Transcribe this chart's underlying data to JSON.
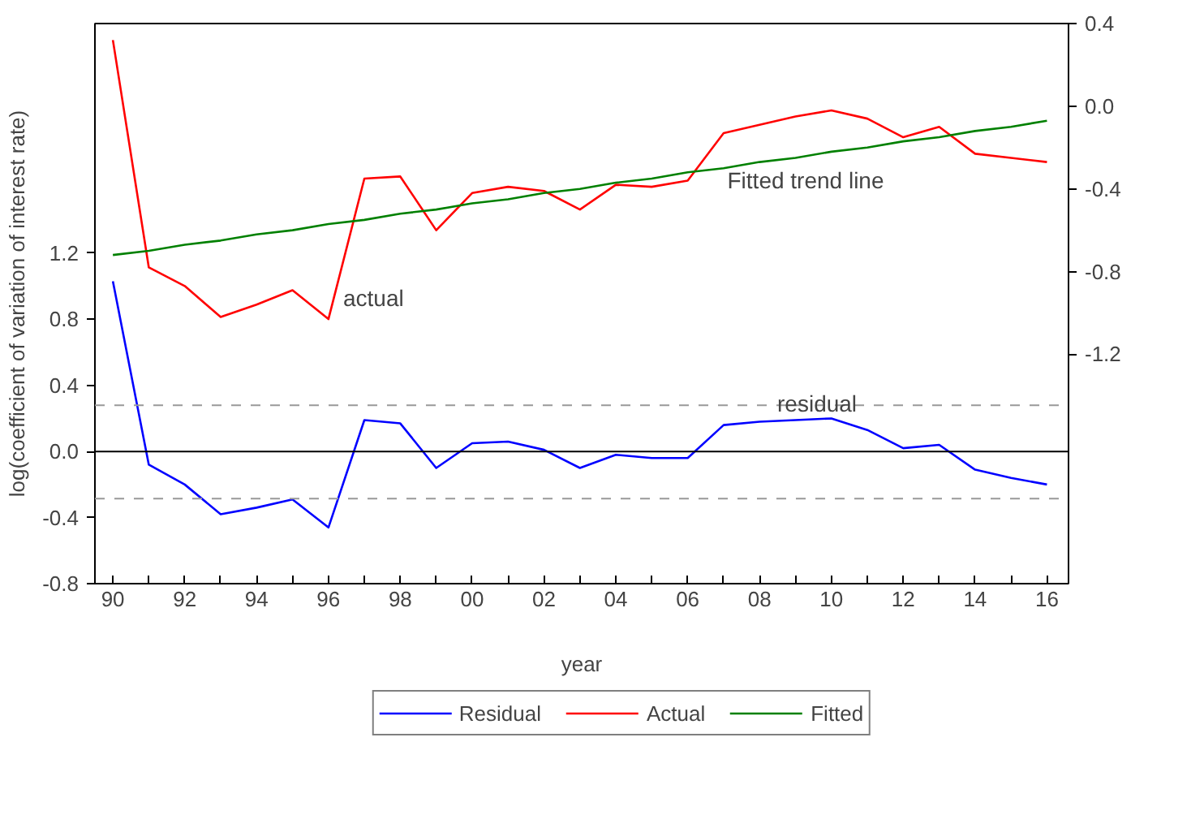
{
  "chart_data": {
    "type": "line",
    "xlabel": "year",
    "ylabel": "log(coefficient of variation of interest rate)",
    "x": [
      1990,
      1991,
      1992,
      1993,
      1994,
      1995,
      1996,
      1997,
      1998,
      1999,
      2000,
      2001,
      2002,
      2003,
      2004,
      2005,
      2006,
      2007,
      2008,
      2009,
      2010,
      2011,
      2012,
      2013,
      2014,
      2015,
      2016
    ],
    "series": [
      {
        "name": "Residual",
        "color": "#0000ff",
        "axis": "y",
        "values": [
          1.03,
          -0.08,
          -0.2,
          -0.38,
          -0.34,
          -0.29,
          -0.46,
          0.19,
          0.17,
          -0.1,
          0.05,
          0.06,
          0.01,
          -0.1,
          -0.02,
          -0.04,
          -0.04,
          0.16,
          0.18,
          0.19,
          0.2,
          0.13,
          0.02,
          0.04,
          -0.11,
          -0.16,
          -0.2
        ]
      },
      {
        "name": "Actual",
        "color": "#ff0000",
        "axis": "y2",
        "values": [
          0.32,
          -0.78,
          -0.87,
          -1.02,
          -0.96,
          -0.89,
          -1.03,
          -0.35,
          -0.34,
          -0.6,
          -0.42,
          -0.39,
          -0.41,
          -0.5,
          -0.38,
          -0.39,
          -0.36,
          -0.13,
          -0.09,
          -0.05,
          -0.02,
          -0.06,
          -0.15,
          -0.1,
          -0.23,
          -0.25,
          -0.27
        ]
      },
      {
        "name": "Fitted",
        "color": "#008000",
        "axis": "y2",
        "values": [
          -0.72,
          -0.7,
          -0.67,
          -0.65,
          -0.62,
          -0.6,
          -0.57,
          -0.55,
          -0.52,
          -0.5,
          -0.47,
          -0.45,
          -0.42,
          -0.4,
          -0.37,
          -0.35,
          -0.32,
          -0.3,
          -0.27,
          -0.25,
          -0.22,
          -0.2,
          -0.17,
          -0.15,
          -0.12,
          -0.1,
          -0.07
        ]
      }
    ],
    "xlim": [
      1989.5,
      2016.6
    ],
    "xticks": [
      {
        "value": 1990,
        "label": "90"
      },
      {
        "value": 1991,
        "label": null
      },
      {
        "value": 1992,
        "label": "92"
      },
      {
        "value": 1993,
        "label": null
      },
      {
        "value": 1994,
        "label": "94"
      },
      {
        "value": 1995,
        "label": null
      },
      {
        "value": 1996,
        "label": "96"
      },
      {
        "value": 1997,
        "label": null
      },
      {
        "value": 1998,
        "label": "98"
      },
      {
        "value": 1999,
        "label": null
      },
      {
        "value": 2000,
        "label": "00"
      },
      {
        "value": 2001,
        "label": null
      },
      {
        "value": 2002,
        "label": "02"
      },
      {
        "value": 2003,
        "label": null
      },
      {
        "value": 2004,
        "label": "04"
      },
      {
        "value": 2005,
        "label": null
      },
      {
        "value": 2006,
        "label": "06"
      },
      {
        "value": 2007,
        "label": null
      },
      {
        "value": 2008,
        "label": "08"
      },
      {
        "value": 2009,
        "label": null
      },
      {
        "value": 2010,
        "label": "10"
      },
      {
        "value": 2011,
        "label": null
      },
      {
        "value": 2012,
        "label": "12"
      },
      {
        "value": 2013,
        "label": null
      },
      {
        "value": 2014,
        "label": "14"
      },
      {
        "value": 2015,
        "label": null
      },
      {
        "value": 2016,
        "label": "16"
      }
    ],
    "ylim": [
      -0.8,
      2.59
    ],
    "yticks": [
      {
        "value": -0.8,
        "label": "-0.8"
      },
      {
        "value": -0.4,
        "label": "-0.4"
      },
      {
        "value": 0,
        "label": "0.0"
      },
      {
        "value": 0.4,
        "label": "0.4"
      },
      {
        "value": 0.8,
        "label": "0.8"
      },
      {
        "value": 1.2,
        "label": "1.2"
      }
    ],
    "y2lim": [
      -2.31,
      0.4
    ],
    "y2ticks": [
      {
        "value": -1.2,
        "label": "-1.2"
      },
      {
        "value": -0.8,
        "label": "-0.8"
      },
      {
        "value": -0.4,
        "label": "-0.4"
      },
      {
        "value": 0,
        "label": "0.0"
      },
      {
        "value": 0.4,
        "label": "0.4"
      }
    ],
    "ref_lines": [
      {
        "axis": "y",
        "value": 0,
        "color": "#000000",
        "line_style": "solid"
      },
      {
        "axis": "y",
        "value": 0.28,
        "color": "#999999",
        "line_style": "dashed"
      },
      {
        "axis": "y",
        "value": -0.285,
        "color": "#999999",
        "line_style": "dashed"
      }
    ],
    "annotations": [
      "actual",
      "Fitted trend line",
      {
        "text": "residual",
        "x": 2009.6,
        "y": 0.29
      }
    ],
    "grid": false,
    "legend": "bottom",
    "line_style": "solid",
    "marker": "none"
  }
}
